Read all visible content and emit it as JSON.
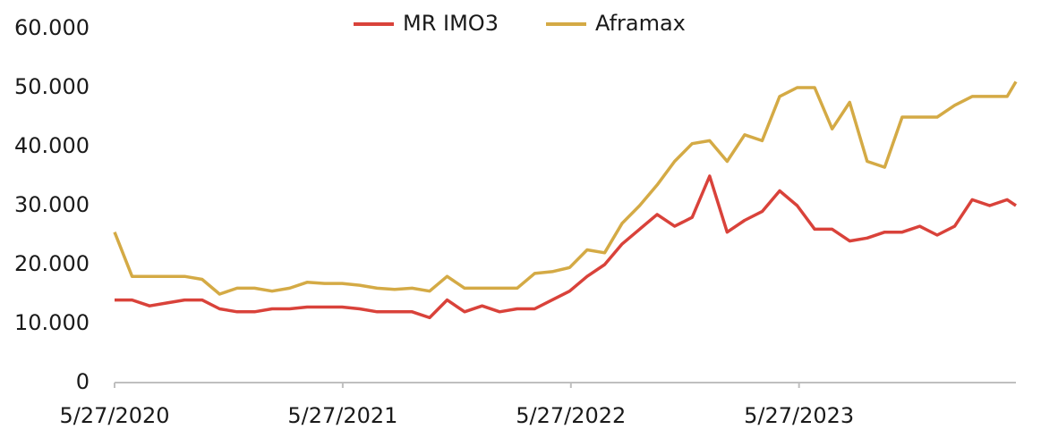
{
  "chart_data": {
    "type": "line",
    "x": [
      "5/27/2020",
      "6/24/2020",
      "7/22/2020",
      "8/19/2020",
      "9/16/2020",
      "10/14/2020",
      "11/11/2020",
      "12/9/2020",
      "1/6/2021",
      "2/3/2021",
      "3/3/2021",
      "3/31/2021",
      "4/28/2021",
      "5/26/2021",
      "6/23/2021",
      "7/21/2021",
      "8/18/2021",
      "9/15/2021",
      "10/13/2021",
      "11/10/2021",
      "12/8/2021",
      "1/5/2022",
      "2/2/2022",
      "3/2/2022",
      "3/30/2022",
      "4/27/2022",
      "5/25/2022",
      "6/22/2022",
      "7/20/2022",
      "8/17/2022",
      "9/14/2022",
      "10/12/2022",
      "11/9/2022",
      "12/7/2022",
      "1/4/2023",
      "2/1/2023",
      "3/1/2023",
      "3/29/2023",
      "4/26/2023",
      "5/24/2023",
      "6/21/2023",
      "7/19/2023",
      "8/16/2023",
      "9/13/2023",
      "10/11/2023",
      "11/8/2023",
      "12/6/2023",
      "1/3/2024",
      "1/31/2024",
      "2/28/2024",
      "3/27/2024",
      "4/24/2024",
      "5/8/2024"
    ],
    "series": [
      {
        "name": "MR IMO3",
        "color": "#d9423a",
        "values": [
          14000,
          14000,
          13000,
          13500,
          14000,
          14000,
          12500,
          12000,
          12000,
          12500,
          12500,
          12800,
          12800,
          12800,
          12500,
          12000,
          12000,
          12000,
          11000,
          14000,
          12000,
          13000,
          12000,
          12500,
          12500,
          14000,
          15500,
          18000,
          20000,
          23500,
          26000,
          28500,
          26500,
          28000,
          35000,
          25500,
          27500,
          29000,
          32500,
          30000,
          26000,
          26000,
          24000,
          24500,
          25500,
          25500,
          26500,
          25000,
          26500,
          31000,
          30000,
          31000,
          30000
        ]
      },
      {
        "name": "Aframax",
        "color": "#d4aa45",
        "values": [
          25500,
          18000,
          18000,
          18000,
          18000,
          17500,
          15000,
          16000,
          16000,
          15500,
          16000,
          17000,
          16800,
          16800,
          16500,
          16000,
          15800,
          16000,
          15500,
          18000,
          16000,
          16000,
          16000,
          16000,
          18500,
          18800,
          19500,
          22500,
          22000,
          27000,
          30000,
          33500,
          37500,
          40500,
          41000,
          37500,
          42000,
          41000,
          48500,
          50000,
          50000,
          43000,
          47500,
          37500,
          36500,
          45000,
          45000,
          45000,
          47000,
          48500,
          48500,
          48500,
          51000
        ]
      }
    ],
    "xlim": [
      "5/27/2020",
      "5/8/2024"
    ],
    "xticks": [
      "5/27/2020",
      "5/27/2021",
      "5/27/2022",
      "5/27/2023"
    ],
    "ylim": [
      0,
      60000
    ],
    "yticks": [
      0,
      {
        "value": 10000,
        "label": "10.000"
      },
      {
        "value": 20000,
        "label": "20.000"
      },
      {
        "value": 30000,
        "label": "30.000"
      },
      {
        "value": 40000,
        "label": "40.000"
      },
      {
        "value": 50000,
        "label": "50.000"
      },
      {
        "value": 60000,
        "label": "60.000"
      }
    ],
    "grid": false
  }
}
